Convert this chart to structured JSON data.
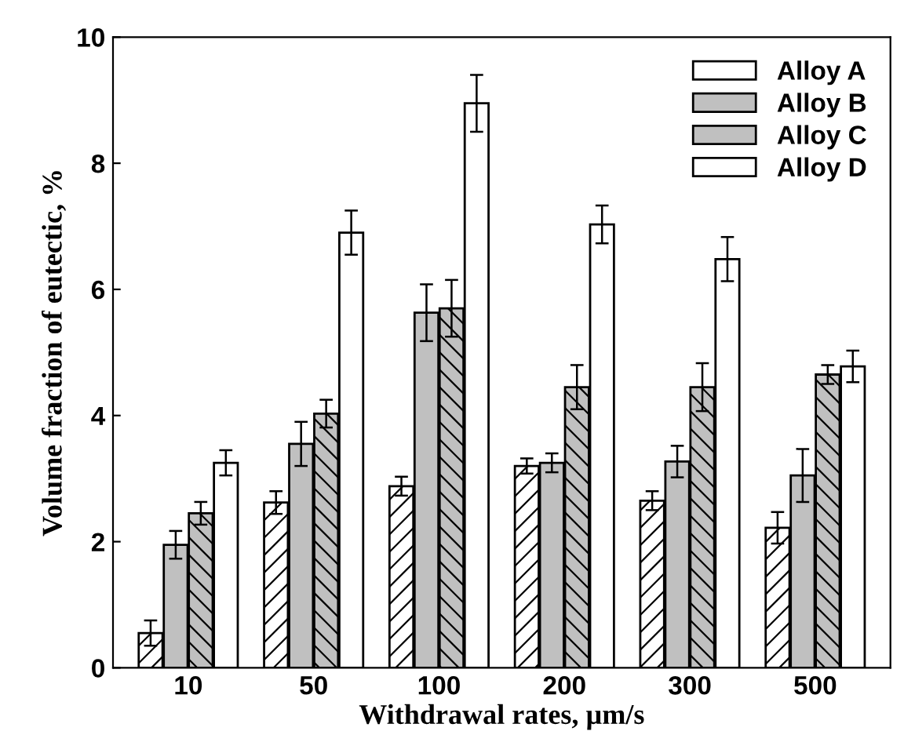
{
  "chart_data": {
    "type": "bar",
    "xlabel": "Withdrawal rates, µm/s",
    "ylabel": "Volume fraction of eutectic, %",
    "categories": [
      "10",
      "50",
      "100",
      "200",
      "300",
      "500"
    ],
    "series": [
      {
        "name": "Alloy A",
        "color": "#ffffff",
        "values": [
          0.55,
          2.62,
          2.88,
          3.2,
          2.65,
          2.22
        ],
        "errors": [
          0.2,
          0.18,
          0.15,
          0.12,
          0.15,
          0.25
        ]
      },
      {
        "name": "Alloy B",
        "color": "#c0c0c0",
        "values": [
          1.95,
          3.55,
          5.63,
          3.25,
          3.27,
          3.05
        ],
        "errors": [
          0.22,
          0.35,
          0.45,
          0.15,
          0.25,
          0.42
        ]
      },
      {
        "name": "Alloy C",
        "color": "#c0c0c0",
        "values": [
          2.45,
          4.03,
          5.7,
          4.45,
          4.45,
          4.65
        ],
        "errors": [
          0.18,
          0.22,
          0.45,
          0.35,
          0.38,
          0.15
        ]
      },
      {
        "name": "Alloy D",
        "color": "#ffffff",
        "values": [
          3.25,
          6.9,
          8.95,
          7.03,
          6.48,
          4.78
        ],
        "errors": [
          0.2,
          0.35,
          0.45,
          0.3,
          0.35,
          0.25
        ]
      }
    ],
    "ylim": [
      0,
      10
    ],
    "yticks": [
      0,
      2,
      4,
      6,
      8,
      10
    ],
    "legend": "top right",
    "grid": false
  }
}
